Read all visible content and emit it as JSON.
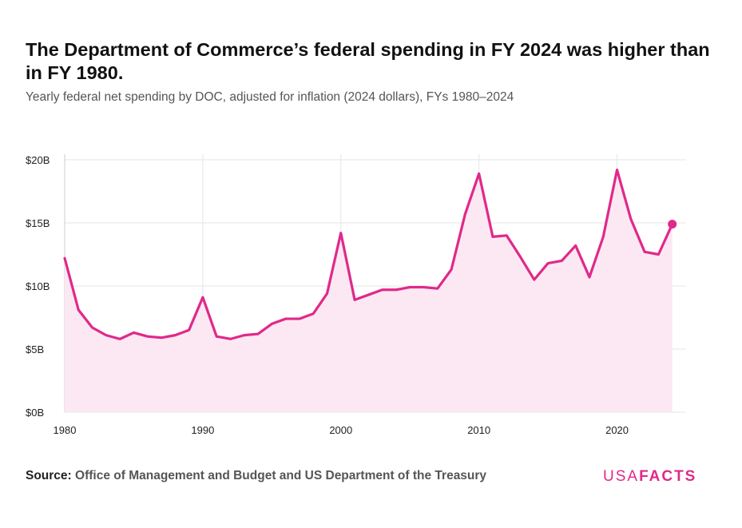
{
  "header": {
    "title": "The Department of Commerce’s federal spending in FY 2024 was higher than in FY 1980.",
    "subtitle": "Yearly federal net spending by DOC, adjusted for inflation (2024 dollars), FYs 1980–2024"
  },
  "footer": {
    "source_label": "Source:",
    "source_text": "Office of Management and Budget and US Department of the Treasury",
    "logo_part1": "USA",
    "logo_part2": "FACTS"
  },
  "colors": {
    "line": "#e0298a",
    "area": "#fce8f2",
    "grid": "#e6e6e6",
    "axis": "#cccccc"
  },
  "chart_data": {
    "type": "area",
    "title": "The Department of Commerce’s federal spending in FY 2024 was higher than in FY 1980.",
    "subtitle": "Yearly federal net spending by DOC, adjusted for inflation (2024 dollars), FYs 1980–2024",
    "xlabel": "",
    "ylabel": "",
    "xlim": [
      1980,
      2025
    ],
    "ylim": [
      0,
      20
    ],
    "x_ticks": [
      1980,
      1990,
      2000,
      2010,
      2020
    ],
    "y_ticks": [
      0,
      5,
      10,
      15,
      20
    ],
    "y_tick_labels": [
      "$0B",
      "$5B",
      "$10B",
      "$15B",
      "$20B"
    ],
    "grid": true,
    "highlight_last_point": true,
    "series": [
      {
        "unit": "billions of 2024 dollars",
        "x": [
          1980,
          1981,
          1982,
          1983,
          1984,
          1985,
          1986,
          1987,
          1988,
          1989,
          1990,
          1991,
          1992,
          1993,
          1994,
          1995,
          1996,
          1997,
          1998,
          1999,
          2000,
          2001,
          2002,
          2003,
          2004,
          2005,
          2006,
          2007,
          2008,
          2009,
          2010,
          2011,
          2012,
          2013,
          2014,
          2015,
          2016,
          2017,
          2018,
          2019,
          2020,
          2021,
          2022,
          2023,
          2024
        ],
        "y": [
          12.2,
          8.1,
          6.7,
          6.1,
          5.8,
          6.3,
          6.0,
          5.9,
          6.1,
          6.5,
          9.1,
          6.0,
          5.8,
          6.1,
          6.2,
          7.0,
          7.4,
          7.4,
          7.8,
          9.4,
          14.2,
          8.9,
          9.3,
          9.7,
          9.7,
          9.9,
          9.9,
          9.8,
          11.3,
          15.7,
          18.9,
          13.9,
          14.0,
          12.3,
          10.5,
          11.8,
          12.0,
          13.2,
          10.7,
          13.9,
          19.2,
          15.3,
          12.7,
          12.5,
          14.9
        ]
      }
    ]
  }
}
